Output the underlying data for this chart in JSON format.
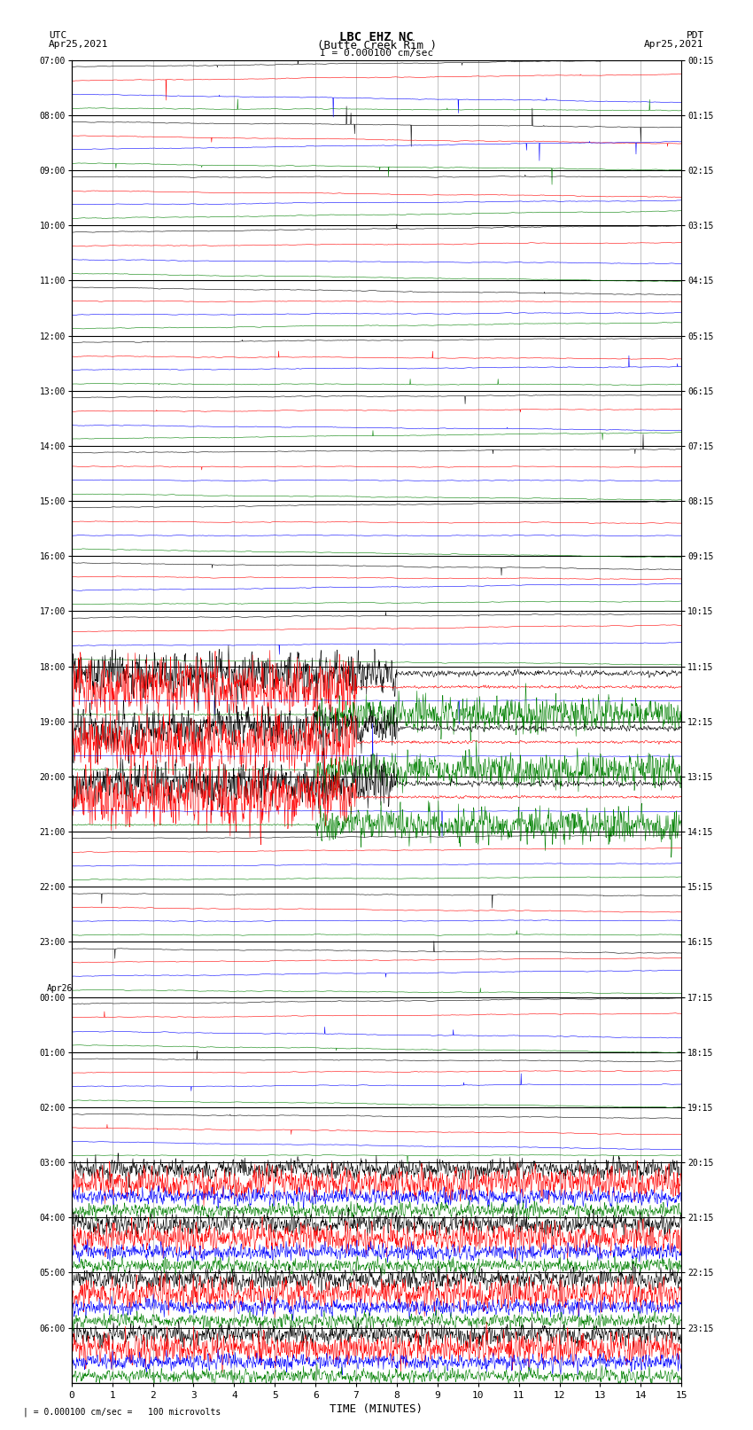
{
  "title_line1": "LBC EHZ NC",
  "title_line2": "(Butte Creek Rim )",
  "scale_label": "I = 0.000100 cm/sec",
  "bottom_label": "| = 0.000100 cm/sec =   100 microvolts",
  "xlabel": "TIME (MINUTES)",
  "left_label": "UTC",
  "left_date": "Apr25,2021",
  "right_label": "PDT",
  "right_date": "Apr25,2021",
  "left_times": [
    "07:00",
    "08:00",
    "09:00",
    "10:00",
    "11:00",
    "12:00",
    "13:00",
    "14:00",
    "15:00",
    "16:00",
    "17:00",
    "18:00",
    "19:00",
    "20:00",
    "21:00",
    "22:00",
    "23:00",
    "00:00",
    "01:00",
    "02:00",
    "03:00",
    "04:00",
    "05:00",
    "06:00"
  ],
  "right_times": [
    "00:15",
    "01:15",
    "02:15",
    "03:15",
    "04:15",
    "05:15",
    "06:15",
    "07:15",
    "08:15",
    "09:15",
    "10:15",
    "11:15",
    "12:15",
    "13:15",
    "14:15",
    "15:15",
    "16:15",
    "17:15",
    "18:15",
    "19:15",
    "20:15",
    "21:15",
    "22:15",
    "23:15"
  ],
  "n_rows": 24,
  "n_cols": 15,
  "bg_color": "#ffffff",
  "grid_color": "#aaaaaa",
  "colors": [
    "#000000",
    "#ff0000",
    "#0000ff",
    "#008000"
  ],
  "seed": 12345,
  "fig_width": 8.5,
  "fig_height": 16.13
}
